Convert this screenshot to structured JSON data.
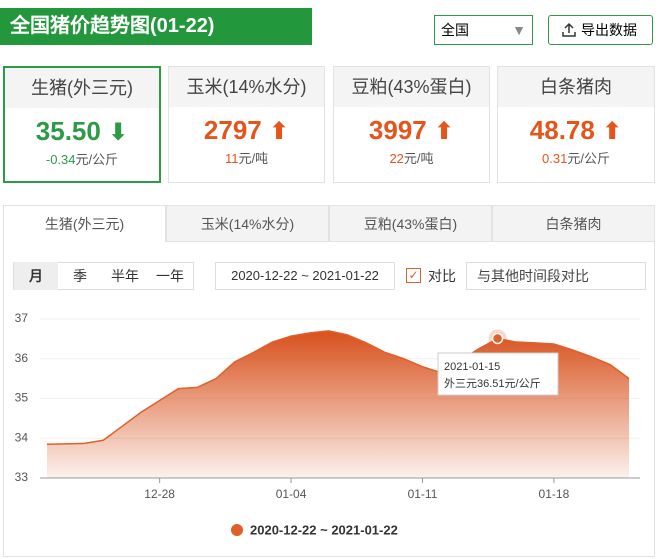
{
  "header": {
    "title": "全国猪价趋势图(01-22)",
    "region": "全国",
    "export": "导出数据"
  },
  "cards": [
    {
      "name": "生猪(外三元)",
      "price": "35.50",
      "change": "-0.34",
      "unit": "元/公斤"
    },
    {
      "name": "玉米(14%水分)",
      "price": "2797",
      "change": "11",
      "unit": "元/吨"
    },
    {
      "name": "豆粕(43%蛋白)",
      "price": "3997",
      "change": "22",
      "unit": "元/吨"
    },
    {
      "name": "白条猪肉",
      "price": "48.78",
      "change": "0.31",
      "unit": "元/公斤"
    }
  ],
  "tabs": [
    "生猪(外三元)",
    "玉米(14%水分)",
    "豆粕(43%蛋白)",
    "白条猪肉"
  ],
  "periods": [
    "月",
    "季",
    "半年",
    "一年"
  ],
  "date_range": "2020-12-22 ~ 2021-01-22",
  "compare": {
    "label": "对比",
    "placeholder": "与其他时间段对比"
  },
  "chart_data": {
    "type": "area",
    "categories": [
      null,
      null,
      null,
      null,
      null,
      null,
      "12-28",
      null,
      null,
      null,
      null,
      null,
      null,
      "01-04",
      null,
      null,
      null,
      null,
      null,
      null,
      "01-11",
      null,
      null,
      null,
      null,
      null,
      null,
      "01-18",
      null,
      null,
      null,
      null
    ],
    "series": [
      {
        "name": "2020-12-22 ~ 2021-01-22",
        "color": "#e0602a",
        "values": [
          33.85,
          33.86,
          33.87,
          33.95,
          34.3,
          34.65,
          34.95,
          35.25,
          35.28,
          35.5,
          35.92,
          36.16,
          36.42,
          36.57,
          36.65,
          36.7,
          36.6,
          36.4,
          36.16,
          36.0,
          35.8,
          35.65,
          35.95,
          36.25,
          36.51,
          36.42,
          36.4,
          36.37,
          36.22,
          36.05,
          35.85,
          35.5
        ]
      }
    ],
    "ylim": [
      33,
      37
    ],
    "yticks": [
      33,
      34,
      35,
      36,
      37
    ],
    "grid": true,
    "tooltip": {
      "index": 24,
      "date": "2021-01-15",
      "label": "外三元36.51元/公斤"
    }
  }
}
